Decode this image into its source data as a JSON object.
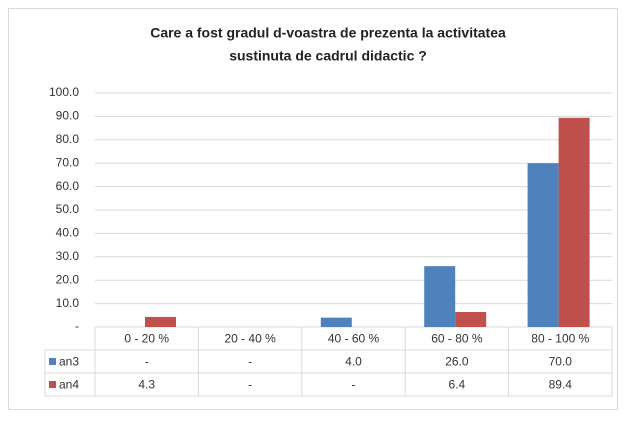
{
  "chart_data": {
    "type": "bar",
    "title": [
      "Care a fost gradul d-voastra de prezenta la activitatea",
      "sustinuta de cadrul didactic ?"
    ],
    "categories": [
      "0 - 20 %",
      "20 - 40 %",
      "40 - 60 %",
      "60 - 80 %",
      "80 - 100 %"
    ],
    "series": [
      {
        "name": "an3",
        "color": "#4f81bd",
        "values": [
          0,
          0,
          4.0,
          26.0,
          70.0
        ],
        "value_labels": [
          "-",
          "-",
          "4.0",
          "26.0",
          "70.0"
        ]
      },
      {
        "name": "an4",
        "color": "#c0504d",
        "values": [
          4.3,
          0,
          0,
          6.4,
          89.4
        ],
        "value_labels": [
          "4.3",
          "-",
          "-",
          "6.4",
          "89.4"
        ]
      }
    ],
    "ylim": [
      0,
      100
    ],
    "yticks": [
      {
        "value": 0,
        "label": "-"
      },
      {
        "value": 10,
        "label": "10.0"
      },
      {
        "value": 20,
        "label": "20.0"
      },
      {
        "value": 30,
        "label": "30.0"
      },
      {
        "value": 40,
        "label": "40.0"
      },
      {
        "value": 50,
        "label": "50.0"
      },
      {
        "value": 60,
        "label": "60.0"
      },
      {
        "value": 70,
        "label": "70.0"
      },
      {
        "value": 80,
        "label": "80.0"
      },
      {
        "value": 90,
        "label": "90.0"
      },
      {
        "value": 100,
        "label": "100.0"
      }
    ],
    "grid": true
  }
}
